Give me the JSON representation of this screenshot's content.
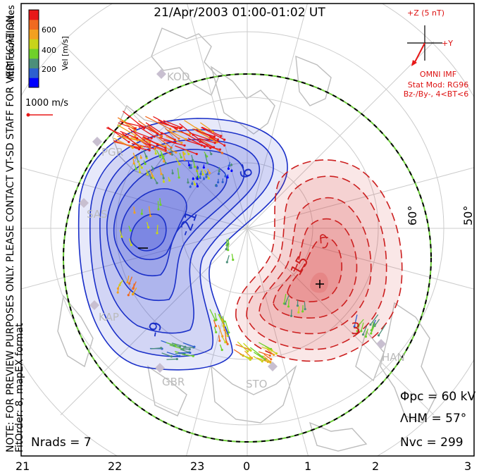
{
  "title": "21/Apr/2003 01:00-01:02 UT",
  "coord_label": "MLT coordinates",
  "notice": "NOTE: FOR PREVIEW PURPOSES ONLY. PLEASE CONTACT VT-SD STAFF FOR VERIFICATION.",
  "fit_info": "FitOrder: 8, mapEX format",
  "colorbar": {
    "label": "Vel [m/s]",
    "ticks": [
      "600",
      "400",
      "200"
    ],
    "colors": [
      "#0000ff",
      "#2d5fd0",
      "#4c8f7a",
      "#6fd12a",
      "#c8d41a",
      "#f2a020",
      "#f06a20",
      "#e81818"
    ]
  },
  "scale_vector": "1000 m/s",
  "imf": {
    "z_label": "+Z (5 nT)",
    "y_label": "+Y",
    "source": "OMNI IMF",
    "model": "Stat Mod: RG96",
    "condition": "Bz-/By-, 4<BT<6"
  },
  "lat_labels": [
    "60°",
    "50°"
  ],
  "contour_labels": [
    "-9",
    "-21",
    "-9",
    "15",
    "3"
  ],
  "stats": {
    "phi_pc": "Φpc = 60 kV",
    "lambda_hm": "ΛHM = 57°",
    "n_vc": "Nvc = 299",
    "n_rads": "Nrads = 7"
  },
  "mlt_ticks": [
    "21",
    "22",
    "23",
    "0",
    "1",
    "2",
    "3"
  ],
  "sites": [
    "KOD",
    "PGR",
    "SAS",
    "KAP",
    "GBR",
    "STO",
    "HAN"
  ],
  "colors": {
    "negative": "#1a2fc8",
    "positive": "#cc1f1f",
    "boundary": "#6dcc3a"
  }
}
